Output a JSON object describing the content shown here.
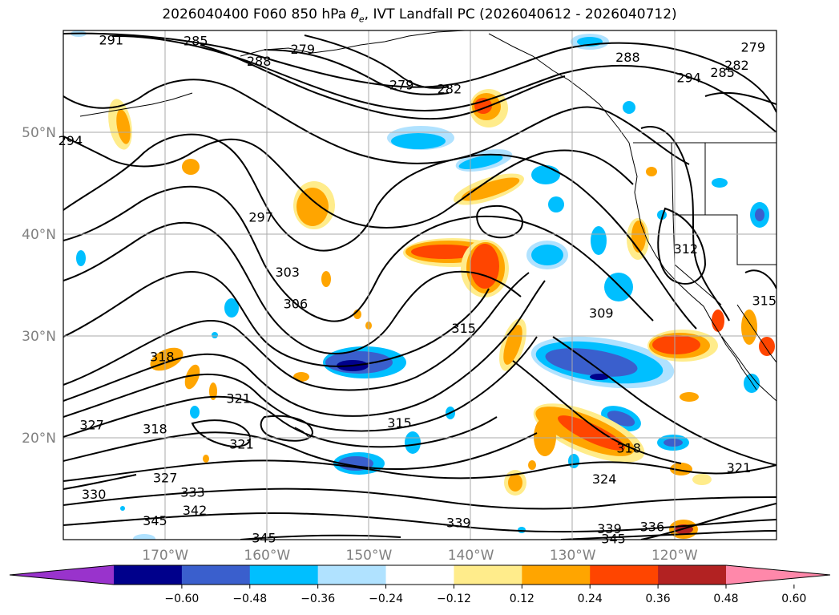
{
  "title": {
    "prefix": "2026040400 F060 850 hPa ",
    "theta": "θ",
    "sub": "e",
    "suffix": ", IVT Landfall PC (2026040612 - 2026040712)"
  },
  "map": {
    "lat_labels": [
      {
        "text": "50°N",
        "lat": 50
      },
      {
        "text": "40°N",
        "lat": 40
      },
      {
        "text": "30°N",
        "lat": 30
      },
      {
        "text": "20°N",
        "lat": 20
      }
    ],
    "lon_labels": [
      {
        "text": "170°W",
        "lon": -170
      },
      {
        "text": "160°W",
        "lon": -160
      },
      {
        "text": "150°W",
        "lon": -150
      },
      {
        "text": "140°W",
        "lon": -140
      },
      {
        "text": "130°W",
        "lon": -130
      },
      {
        "text": "120°W",
        "lon": -120
      }
    ],
    "extent": {
      "lon_min": -180,
      "lon_max": -110,
      "lat_min": 10,
      "lat_max": 60
    }
  },
  "contour_labels": [
    {
      "text": "291",
      "lon": -175.3,
      "lat": 59.1
    },
    {
      "text": "285",
      "lon": -167.0,
      "lat": 59.0
    },
    {
      "text": "279",
      "lon": -156.5,
      "lat": 58.2
    },
    {
      "text": "288",
      "lon": -160.8,
      "lat": 57.0
    },
    {
      "text": "279",
      "lon": -146.8,
      "lat": 54.7
    },
    {
      "text": "282",
      "lon": -142.1,
      "lat": 54.3
    },
    {
      "text": "288",
      "lon": -124.6,
      "lat": 57.4
    },
    {
      "text": "294",
      "lon": -118.6,
      "lat": 55.4
    },
    {
      "text": "285",
      "lon": -115.3,
      "lat": 55.9
    },
    {
      "text": "282",
      "lon": -113.9,
      "lat": 56.6
    },
    {
      "text": "279",
      "lon": -112.3,
      "lat": 58.4
    },
    {
      "text": "294",
      "lon": -179.3,
      "lat": 49.2
    },
    {
      "text": "297",
      "lon": -160.6,
      "lat": 41.7
    },
    {
      "text": "303",
      "lon": -158.0,
      "lat": 36.3
    },
    {
      "text": "306",
      "lon": -157.2,
      "lat": 33.2
    },
    {
      "text": "312",
      "lon": -118.9,
      "lat": 38.6
    },
    {
      "text": "315",
      "lon": -111.2,
      "lat": 33.5
    },
    {
      "text": "309",
      "lon": -127.2,
      "lat": 32.3
    },
    {
      "text": "315",
      "lon": -140.7,
      "lat": 30.8
    },
    {
      "text": "318",
      "lon": -170.3,
      "lat": 28.0
    },
    {
      "text": "321",
      "lon": -162.8,
      "lat": 23.9
    },
    {
      "text": "327",
      "lon": -177.2,
      "lat": 21.3
    },
    {
      "text": "318",
      "lon": -171.0,
      "lat": 20.9
    },
    {
      "text": "321",
      "lon": -162.5,
      "lat": 19.4
    },
    {
      "text": "315",
      "lon": -147.0,
      "lat": 21.5
    },
    {
      "text": "318",
      "lon": -124.5,
      "lat": 19.0
    },
    {
      "text": "321",
      "lon": -113.7,
      "lat": 17.1
    },
    {
      "text": "324",
      "lon": -126.9,
      "lat": 16.0
    },
    {
      "text": "327",
      "lon": -170.0,
      "lat": 16.1
    },
    {
      "text": "330",
      "lon": -177.0,
      "lat": 14.5
    },
    {
      "text": "333",
      "lon": -167.3,
      "lat": 14.7
    },
    {
      "text": "342",
      "lon": -167.1,
      "lat": 12.9
    },
    {
      "text": "345",
      "lon": -171.0,
      "lat": 11.9
    },
    {
      "text": "339",
      "lon": -141.2,
      "lat": 11.7
    },
    {
      "text": "339",
      "lon": -126.4,
      "lat": 11.1
    },
    {
      "text": "336",
      "lon": -122.2,
      "lat": 11.3
    },
    {
      "text": "345",
      "lon": -126.0,
      "lat": 10.1
    },
    {
      "text": "345",
      "lon": -160.3,
      "lat": 10.2
    }
  ],
  "colorbar": {
    "ticks": [
      "−0.60",
      "−0.48",
      "−0.36",
      "−0.24",
      "−0.12",
      "0.12",
      "0.24",
      "0.36",
      "0.48",
      "0.60"
    ],
    "colors": [
      "#9933cc",
      "#00008b",
      "#3a5fcd",
      "#00bfff",
      "#b0e2ff",
      "#ffffff",
      "#ffec8b",
      "#ffa500",
      "#ff4500",
      "#b22222",
      "#ff88aa"
    ]
  },
  "field_colors": {
    "neg_weak": "#b0e2ff",
    "neg_mid": "#00bfff",
    "neg_strong": "#3a5fcd",
    "neg_core": "#00008b",
    "pos_weak": "#ffec8b",
    "pos_mid": "#ffa500",
    "pos_strong": "#ff4500",
    "pos_core": "#b22222"
  }
}
